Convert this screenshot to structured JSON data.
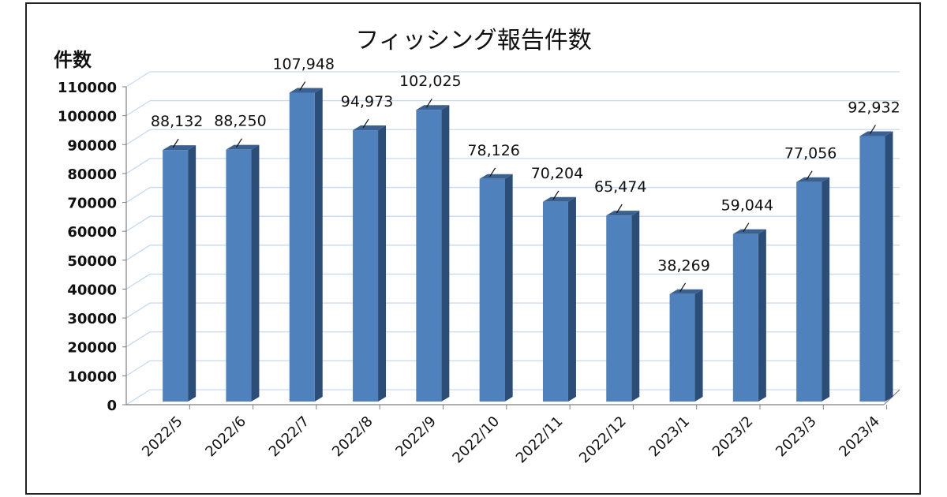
{
  "chart_data": {
    "type": "bar",
    "title": "フィッシング報告件数",
    "ylabel": "件数",
    "xlabel": "",
    "categories": [
      "2022/5",
      "2022/6",
      "2022/7",
      "2022/8",
      "2022/9",
      "2022/10",
      "2022/11",
      "2022/12",
      "2023/1",
      "2023/2",
      "2023/3",
      "2023/4"
    ],
    "values": [
      88132,
      88250,
      107948,
      94973,
      102025,
      78126,
      70204,
      65474,
      38269,
      59044,
      77056,
      92932
    ],
    "data_labels": [
      "88,132",
      "88,250",
      "107,948",
      "94,973",
      "102,025",
      "78,126",
      "70,204",
      "65,474",
      "38,269",
      "59,044",
      "77,056",
      "92,932"
    ],
    "ylim": [
      0,
      110000
    ],
    "yticks": [
      "0",
      "10000",
      "20000",
      "30000",
      "40000",
      "50000",
      "60000",
      "70000",
      "80000",
      "90000",
      "100000",
      "110000"
    ],
    "grid": true,
    "legend": "none",
    "colors": {
      "bar_front": "#4F81BD",
      "bar_side": "#2C4D75",
      "bar_top": "#3A6192",
      "grid": "#C6D9F1"
    }
  }
}
